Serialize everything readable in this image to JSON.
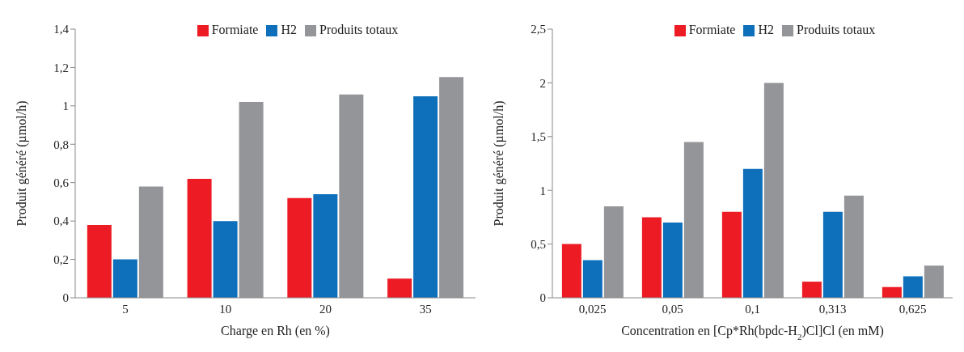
{
  "chart_data": [
    {
      "type": "bar",
      "xlabel": "Charge en Rh (en %)",
      "ylabel": "Produit généré (µmol/h)",
      "categories": [
        "5",
        "10",
        "20",
        "35"
      ],
      "series": [
        {
          "name": "Formiate",
          "color": "#ed1c24",
          "values": [
            0.38,
            0.62,
            0.52,
            0.1
          ]
        },
        {
          "name": "H2",
          "color": "#0e6fba",
          "values": [
            0.2,
            0.4,
            0.54,
            1.05
          ]
        },
        {
          "name": "Produits totaux",
          "color": "#939598",
          "values": [
            0.58,
            1.02,
            1.06,
            1.15
          ]
        }
      ],
      "ylim": [
        0,
        1.4
      ],
      "yticks": [
        0,
        {
          "value": 0.2,
          "label": "0,2"
        },
        {
          "value": 0.4,
          "label": "0,4"
        },
        {
          "value": 0.6,
          "label": "0,6"
        },
        {
          "value": 0.8,
          "label": "0,8"
        },
        1,
        {
          "value": 1.2,
          "label": "1,2"
        },
        {
          "value": 1.4,
          "label": "1,4"
        }
      ],
      "grid": false,
      "legend": "top"
    },
    {
      "type": "bar",
      "xlabel": "Concentration en [Cp*Rh(bpdc-H$_{2}$)Cl]Cl (en mM)",
      "ylabel": "Produit généré (µmol/h)",
      "categories": [
        "0,025",
        "0,05",
        "0,1",
        "0,313",
        "0,625"
      ],
      "series": [
        {
          "name": "Formiate",
          "color": "#ed1c24",
          "values": [
            0.5,
            0.75,
            0.8,
            0.15,
            0.1
          ]
        },
        {
          "name": "H2",
          "color": "#0e6fba",
          "values": [
            0.35,
            0.7,
            1.2,
            0.8,
            0.2
          ]
        },
        {
          "name": "Produits totaux",
          "color": "#939598",
          "values": [
            0.85,
            1.45,
            2.0,
            0.95,
            0.3
          ]
        }
      ],
      "ylim": [
        0,
        2.5
      ],
      "yticks": [
        0,
        {
          "value": 0.5,
          "label": "0,5"
        },
        1,
        {
          "value": 1.5,
          "label": "1,5"
        },
        2,
        {
          "value": 2.5,
          "label": "2,5"
        }
      ],
      "grid": false,
      "legend": "top"
    }
  ]
}
